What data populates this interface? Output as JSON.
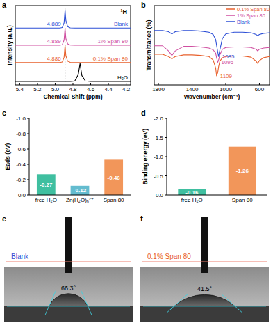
{
  "chart_data": [
    {
      "panel": "a",
      "type": "line",
      "annotation": "¹H",
      "x_label": "Chemical Shift (ppm)",
      "y_label": "Intensity (a.u.)",
      "x": [
        5.45,
        5.2,
        5.0,
        4.95,
        4.92,
        4.9,
        4.889,
        4.88,
        4.86,
        4.83,
        4.78,
        4.74,
        4.72,
        4.7,
        4.66,
        4.6,
        4.4,
        4.15
      ],
      "xlim": [
        5.45,
        4.15
      ],
      "xticks": [
        5.4,
        5.2,
        {
          "value": 5,
          "label": "5.0"
        },
        4.8,
        4.6,
        4.4,
        4.2
      ],
      "ylim": [
        0,
        4.6
      ],
      "tick_labels": "x",
      "vline": 4.889,
      "series": [
        {
          "name": "Blank",
          "color": "#2d4fd6",
          "peak_label": "4.889",
          "values": [
            3.3,
            3.3,
            3.3,
            3.3,
            3.33,
            3.6,
            4.35,
            3.75,
            3.38,
            3.31,
            3.3,
            3.3,
            3.3,
            3.3,
            3.3,
            3.3,
            3.3,
            3.3
          ]
        },
        {
          "name": "1% Span 80",
          "color": "#cf4ea0",
          "peak_label": "4.889",
          "values": [
            2.3,
            2.3,
            2.3,
            2.3,
            2.33,
            2.6,
            3.3,
            2.7,
            2.38,
            2.31,
            2.3,
            2.3,
            2.3,
            2.3,
            2.3,
            2.3,
            2.3,
            2.3
          ]
        },
        {
          "name": "0.1% Span 80",
          "color": "#e8602c",
          "peak_label": "4.886",
          "values": [
            1.3,
            1.3,
            1.3,
            1.3,
            1.33,
            1.6,
            2.3,
            1.7,
            1.38,
            1.31,
            1.3,
            1.3,
            1.3,
            1.3,
            1.3,
            1.3,
            1.3,
            1.3
          ]
        },
        {
          "name": "H₂O",
          "color": "#000000",
          "values": [
            0.2,
            0.2,
            0.2,
            0.2,
            0.2,
            0.2,
            0.2,
            0.2,
            0.2,
            0.2,
            0.22,
            0.6,
            1.25,
            0.55,
            0.23,
            0.2,
            0.2,
            0.2
          ]
        }
      ]
    },
    {
      "panel": "b",
      "type": "line",
      "x_label": "Wavenumber (cm⁻¹)",
      "y_label": "Transmittance (%)",
      "x": [
        1850,
        1750,
        1680,
        1640,
        1600,
        1500,
        1400,
        1300,
        1200,
        1150,
        1120,
        1109,
        1095,
        1085,
        1070,
        1040,
        1000,
        900,
        800,
        700,
        640,
        620,
        600,
        550,
        480
      ],
      "xlim": [
        1850,
        480
      ],
      "xticks": [
        1800,
        1400,
        1000,
        600
      ],
      "ylim": [
        0,
        14
      ],
      "tick_labels": "x",
      "legend": "upper right",
      "series": [
        {
          "name": "0.1% Span 80",
          "color": "#e8602c",
          "peak_label": "1109",
          "values": [
            5.4,
            5.4,
            5.0,
            4.6,
            5.0,
            5.3,
            5.3,
            5.2,
            5.0,
            4.4,
            3.0,
            1.6,
            2.2,
            3.2,
            4.2,
            4.8,
            5.0,
            5.1,
            5.1,
            4.9,
            4.2,
            3.8,
            4.3,
            4.8,
            5.0
          ]
        },
        {
          "name": "1% Span 80",
          "color": "#cf4ea0",
          "peak_label": "1095",
          "values": [
            6.9,
            6.9,
            6.0,
            5.2,
            6.0,
            6.8,
            6.8,
            6.7,
            6.5,
            6.2,
            5.6,
            4.8,
            4.0,
            4.4,
            5.3,
            6.3,
            6.6,
            6.7,
            6.7,
            6.6,
            6.3,
            6.0,
            6.3,
            6.5,
            6.6
          ]
        },
        {
          "name": "Blank",
          "color": "#2d4fd6",
          "peak_label": "1085",
          "values": [
            9.6,
            9.6,
            9.4,
            9.0,
            9.4,
            9.6,
            9.6,
            9.5,
            9.3,
            8.9,
            8.0,
            7.0,
            5.8,
            5.0,
            6.2,
            8.2,
            9.0,
            9.3,
            9.3,
            9.2,
            8.9,
            8.7,
            8.9,
            9.1,
            9.2
          ]
        }
      ]
    },
    {
      "panel": "c",
      "type": "bar",
      "y_label": "Eads (eV)",
      "categories": [
        "free H₂O",
        "Zn(H₂O)₆²⁺",
        "Span 80"
      ],
      "values": [
        -0.27,
        -0.12,
        -0.46
      ],
      "colors": [
        "#3fbfa0",
        "#64bccf",
        "#f2965a"
      ],
      "ylim": [
        0,
        -1
      ],
      "yticks": [
        {
          "value": 0,
          "label": "0.0"
        },
        -0.2,
        -0.4,
        -0.6,
        -0.8,
        {
          "value": -1,
          "label": "-1.0"
        }
      ],
      "data_labels": true
    },
    {
      "panel": "d",
      "type": "bar",
      "y_label": "Binding energy (eV)",
      "categories": [
        "free H₂O",
        "Span 80"
      ],
      "values": [
        -0.16,
        -1.26
      ],
      "colors": [
        "#3fbfa0",
        "#f2965a"
      ],
      "ylim": [
        0,
        -2
      ],
      "yticks": [
        {
          "value": 0,
          "label": "0.0"
        },
        -0.5,
        {
          "value": -1,
          "label": "-1.0"
        },
        -1.5,
        {
          "value": -2,
          "label": "-2.0"
        }
      ],
      "data_labels": true
    }
  ],
  "photos": [
    {
      "panel": "e",
      "title": "Blank",
      "color": "#2d4fd6",
      "angle": 66.3,
      "angle_label": "66.3°"
    },
    {
      "panel": "f",
      "title": "0.1% Span 80",
      "color": "#e8602c",
      "angle": 41.5,
      "angle_label": "41.5°"
    }
  ]
}
